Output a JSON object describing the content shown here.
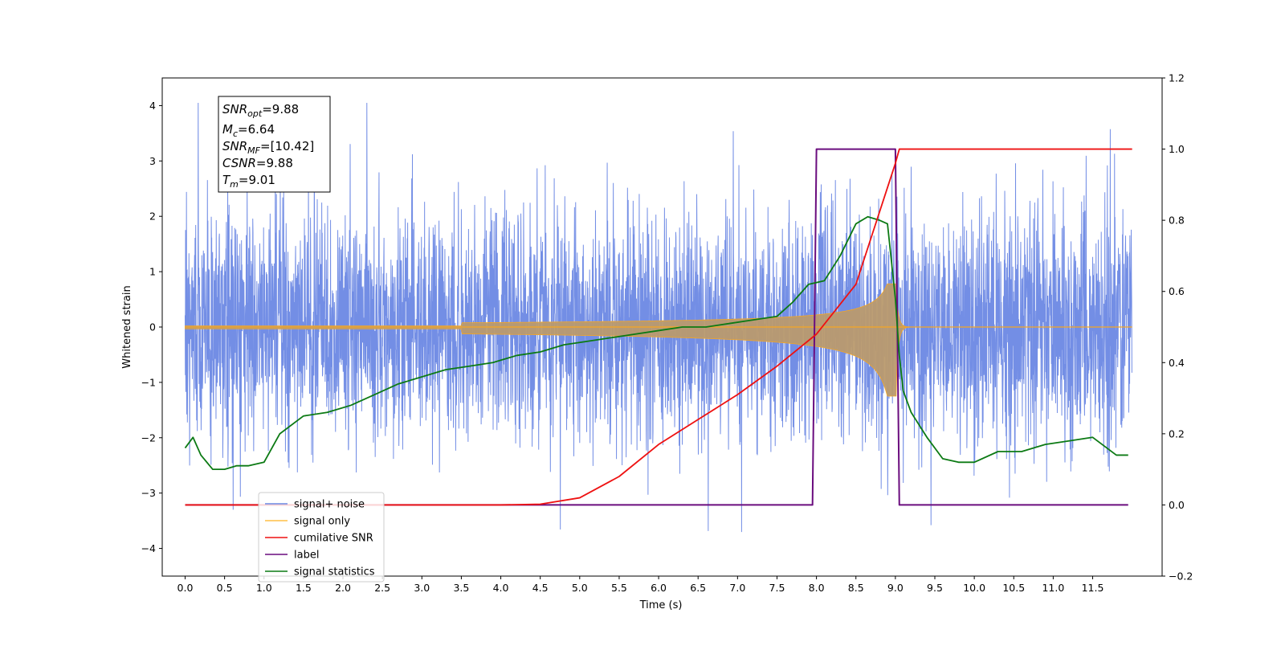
{
  "chart_data": {
    "type": "line",
    "xlabel": "Time (s)",
    "ylabel": "Whitened strain",
    "x_ticks": [
      "0.0",
      "0.5",
      "1.0",
      "1.5",
      "2.0",
      "2.5",
      "3.0",
      "3.5",
      "4.0",
      "4.5",
      "5.0",
      "5.5",
      "6.0",
      "6.5",
      "7.0",
      "7.5",
      "8.0",
      "8.5",
      "9.0",
      "9.5",
      "10.0",
      "10.5",
      "11.0",
      "11.5"
    ],
    "xlim": [
      -0.29,
      12.38
    ],
    "ylim_left": [
      -4.5,
      4.5
    ],
    "y_ticks_left": [
      "4",
      "3",
      "2",
      "1",
      "0",
      "−1",
      "−2",
      "−3",
      "−4"
    ],
    "ylim_right": [
      -0.2,
      1.2
    ],
    "y_ticks_right": [
      "1.2",
      "1.0",
      "0.8",
      "0.6",
      "0.4",
      "0.2",
      "0.0",
      "−0.2"
    ],
    "grid": false,
    "legend_position": "lower-left",
    "colors": {
      "signal_noise": "#6b88e4",
      "signal_only": "#f5a623",
      "signal_only_fill": "#b99a6e",
      "cumulative_snr": "#ee1111",
      "label": "#6a0c7e",
      "signal_statistics": "#0c7a14"
    },
    "series": [
      {
        "name": "signal+ noise",
        "axis": "left",
        "description_values": "white noise, ±1.5 core, spikes to ±4 over t∈[0,12]"
      },
      {
        "name": "signal only",
        "axis": "left",
        "chirp_merger_time": 9.01,
        "peak_amplitude": 0.65
      },
      {
        "name": "cumilative SNR",
        "axis": "right",
        "x": [
          0,
          4.0,
          4.5,
          5.0,
          5.5,
          6.0,
          6.5,
          7.0,
          7.5,
          8.0,
          8.5,
          9.0,
          9.05,
          12.0
        ],
        "y": [
          0,
          0.0,
          0.002,
          0.02,
          0.08,
          0.17,
          0.24,
          0.31,
          0.39,
          0.48,
          0.62,
          0.96,
          1.0,
          1.0
        ]
      },
      {
        "name": "label",
        "axis": "right",
        "x": [
          0,
          7.95,
          8.0,
          9.0,
          9.05,
          11.95
        ],
        "y": [
          0,
          0,
          1,
          1,
          0,
          0
        ]
      },
      {
        "name": "signal statistics",
        "axis": "right",
        "x": [
          0,
          0.1,
          0.2,
          0.35,
          0.5,
          0.65,
          0.8,
          1.0,
          1.2,
          1.5,
          1.8,
          2.1,
          2.4,
          2.7,
          3.0,
          3.3,
          3.6,
          3.9,
          4.2,
          4.5,
          4.8,
          5.1,
          5.4,
          5.7,
          6.0,
          6.3,
          6.6,
          6.9,
          7.2,
          7.5,
          7.7,
          7.9,
          8.1,
          8.3,
          8.5,
          8.65,
          8.8,
          8.9,
          9.0,
          9.05,
          9.1,
          9.2,
          9.4,
          9.6,
          9.8,
          10.0,
          10.3,
          10.6,
          10.9,
          11.2,
          11.5,
          11.8,
          11.95
        ],
        "y": [
          0.16,
          0.19,
          0.14,
          0.1,
          0.1,
          0.11,
          0.11,
          0.12,
          0.2,
          0.25,
          0.26,
          0.28,
          0.31,
          0.34,
          0.36,
          0.38,
          0.39,
          0.4,
          0.42,
          0.43,
          0.45,
          0.46,
          0.47,
          0.48,
          0.49,
          0.5,
          0.5,
          0.51,
          0.52,
          0.53,
          0.57,
          0.62,
          0.63,
          0.7,
          0.79,
          0.81,
          0.8,
          0.79,
          0.58,
          0.42,
          0.32,
          0.26,
          0.19,
          0.13,
          0.12,
          0.12,
          0.15,
          0.15,
          0.17,
          0.18,
          0.19,
          0.14,
          0.14
        ]
      }
    ]
  },
  "legend": {
    "items": [
      {
        "label": "signal+ noise",
        "color": "#6b88e4"
      },
      {
        "label": "signal only",
        "color": "#ffbf47"
      },
      {
        "label": "cumilative SNR",
        "color": "#ee1111"
      },
      {
        "label": "label",
        "color": "#6a0c7e"
      },
      {
        "label": "signal statistics",
        "color": "#0c7a14"
      }
    ]
  },
  "annotation": {
    "snr_opt_main": "SNR",
    "snr_opt_sub": "opt",
    "snr_opt_value": "=9.88",
    "mc_main": "M",
    "mc_sub": "c",
    "mc_value": "=6.64",
    "snr_mf_main": "SNR",
    "snr_mf_sub": "MF",
    "snr_mf_value": "=[10.42]",
    "csnr_main": "CSNR",
    "csnr_value": "=9.88",
    "tm_main": "T",
    "tm_sub": "m",
    "tm_value": "=9.01"
  }
}
